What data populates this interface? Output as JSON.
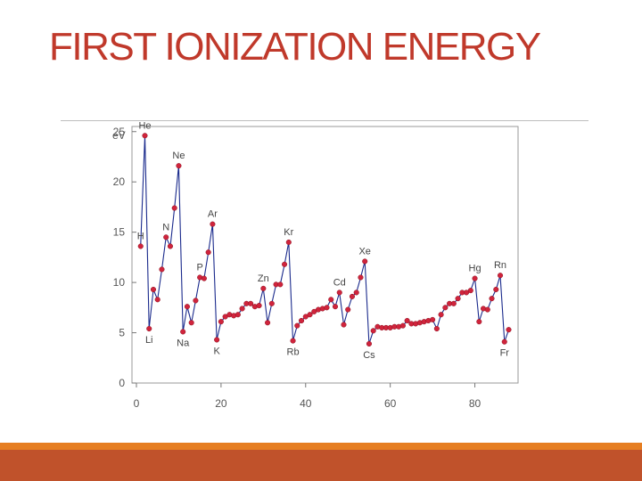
{
  "slide": {
    "title": "FIRST IONIZATION ENERGY",
    "colors": {
      "title": "#c0392b",
      "accent_bar": "#e67e22",
      "footer": "#c0522b",
      "marker": "#d0243c",
      "line": "#1a2a8c"
    }
  },
  "chart_data": {
    "type": "line",
    "title": "",
    "xlabel": "",
    "ylabel": "eV",
    "xlim": [
      0,
      90
    ],
    "ylim": [
      0,
      25
    ],
    "grid": false,
    "xticks": [
      0,
      20,
      40,
      60,
      80
    ],
    "yticks": [
      0,
      5,
      10,
      15,
      20,
      25
    ],
    "xtick_labels": [
      "0",
      "20",
      "40",
      "60",
      "80"
    ],
    "ytick_labels": [
      "0",
      "5",
      "10",
      "15",
      "20",
      "25"
    ],
    "series": [
      {
        "name": "",
        "x": [
          1,
          2,
          3,
          4,
          5,
          6,
          7,
          8,
          9,
          10,
          11,
          12,
          13,
          14,
          15,
          16,
          17,
          18,
          19,
          20,
          21,
          22,
          23,
          24,
          25,
          26,
          27,
          28,
          29,
          30,
          31,
          32,
          33,
          34,
          35,
          36,
          37,
          38,
          39,
          40,
          41,
          42,
          43,
          44,
          45,
          46,
          47,
          48,
          49,
          50,
          51,
          52,
          53,
          54,
          55,
          56,
          57,
          58,
          59,
          60,
          61,
          62,
          63,
          64,
          65,
          66,
          67,
          68,
          69,
          70,
          71,
          72,
          73,
          74,
          75,
          76,
          77,
          78,
          79,
          80,
          81,
          82,
          83,
          84,
          85,
          86,
          87,
          88
        ],
        "y": [
          13.6,
          24.6,
          5.4,
          9.3,
          8.3,
          11.3,
          14.5,
          13.6,
          17.4,
          21.6,
          5.1,
          7.6,
          6.0,
          8.2,
          10.5,
          10.4,
          13.0,
          15.8,
          4.3,
          6.1,
          6.6,
          6.8,
          6.7,
          6.8,
          7.4,
          7.9,
          7.9,
          7.6,
          7.7,
          9.4,
          6.0,
          7.9,
          9.8,
          9.8,
          11.8,
          14.0,
          4.2,
          5.7,
          6.2,
          6.6,
          6.8,
          7.1,
          7.3,
          7.4,
          7.5,
          8.3,
          7.6,
          9.0,
          5.8,
          7.3,
          8.6,
          9.0,
          10.5,
          12.1,
          3.9,
          5.2,
          5.6,
          5.5,
          5.5,
          5.5,
          5.6,
          5.6,
          5.7,
          6.2,
          5.9,
          5.9,
          6.0,
          6.1,
          6.2,
          6.3,
          5.4,
          6.8,
          7.5,
          7.9,
          7.9,
          8.4,
          9.0,
          9.0,
          9.2,
          10.4,
          6.1,
          7.4,
          7.3,
          8.4,
          9.3,
          10.7,
          4.1,
          5.3
        ]
      }
    ],
    "point_labels": [
      {
        "text": "He",
        "x": 2,
        "y": 24.6
      },
      {
        "text": "Ne",
        "x": 10,
        "y": 21.6
      },
      {
        "text": "Ar",
        "x": 18,
        "y": 15.8
      },
      {
        "text": "N",
        "x": 7,
        "y": 14.5
      },
      {
        "text": "H",
        "x": 1,
        "y": 13.6
      },
      {
        "text": "P",
        "x": 15,
        "y": 10.5
      },
      {
        "text": "Kr",
        "x": 36,
        "y": 14.0
      },
      {
        "text": "Zn",
        "x": 30,
        "y": 9.4
      },
      {
        "text": "Cd",
        "x": 48,
        "y": 9.0
      },
      {
        "text": "Xe",
        "x": 54,
        "y": 12.1
      },
      {
        "text": "Hg",
        "x": 80,
        "y": 10.4
      },
      {
        "text": "Rn",
        "x": 86,
        "y": 10.7
      },
      {
        "text": "Li",
        "x": 3,
        "y": 5.4
      },
      {
        "text": "Na",
        "x": 11,
        "y": 5.1
      },
      {
        "text": "K",
        "x": 19,
        "y": 4.3
      },
      {
        "text": "Rb",
        "x": 37,
        "y": 4.2
      },
      {
        "text": "Cs",
        "x": 55,
        "y": 3.9
      },
      {
        "text": "Fr",
        "x": 87,
        "y": 4.1
      }
    ]
  }
}
